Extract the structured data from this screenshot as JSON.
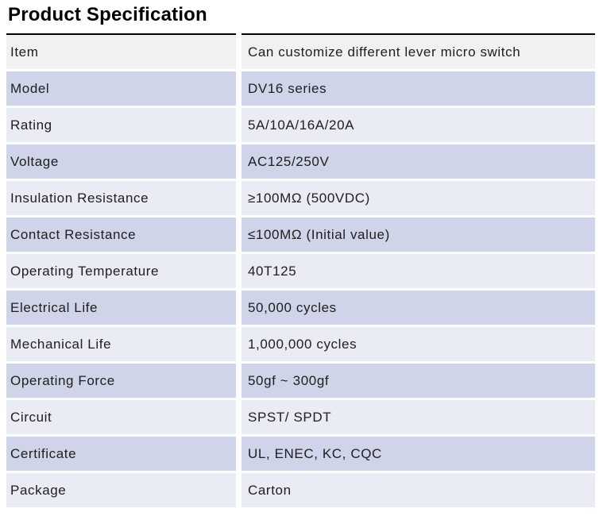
{
  "page": {
    "title": "Product Specification"
  },
  "table": {
    "rows": [
      {
        "label": "Item",
        "value": "Can customize different lever micro switch"
      },
      {
        "label": "Model",
        "value": "DV16 series"
      },
      {
        "label": "Rating",
        "value": "5A/10A/16A/20A"
      },
      {
        "label": "Voltage",
        "value": "AC125/250V"
      },
      {
        "label": "Insulation Resistance",
        "value": "≥100MΩ (500VDC)"
      },
      {
        "label": "Contact Resistance",
        "value": "≤100MΩ (Initial value)"
      },
      {
        "label": "Operating Temperature",
        "value": "40T125"
      },
      {
        "label": "Electrical Life",
        "value": "50,000 cycles"
      },
      {
        "label": "Mechanical Life",
        "value": "1,000,000 cycles"
      },
      {
        "label": "Operating Force",
        "value": "50gf ~ 300gf"
      },
      {
        "label": "Circuit",
        "value": "SPST/ SPDT"
      },
      {
        "label": "Certificate",
        "value": "UL, ENEC, KC, CQC"
      },
      {
        "label": "Package",
        "value": "Carton"
      }
    ]
  },
  "colors": {
    "row_first": "#f1f1f1",
    "row_light": "#e9ebf5",
    "row_dark": "#cfd4e9",
    "rule": "#000000",
    "text": "#202020"
  }
}
